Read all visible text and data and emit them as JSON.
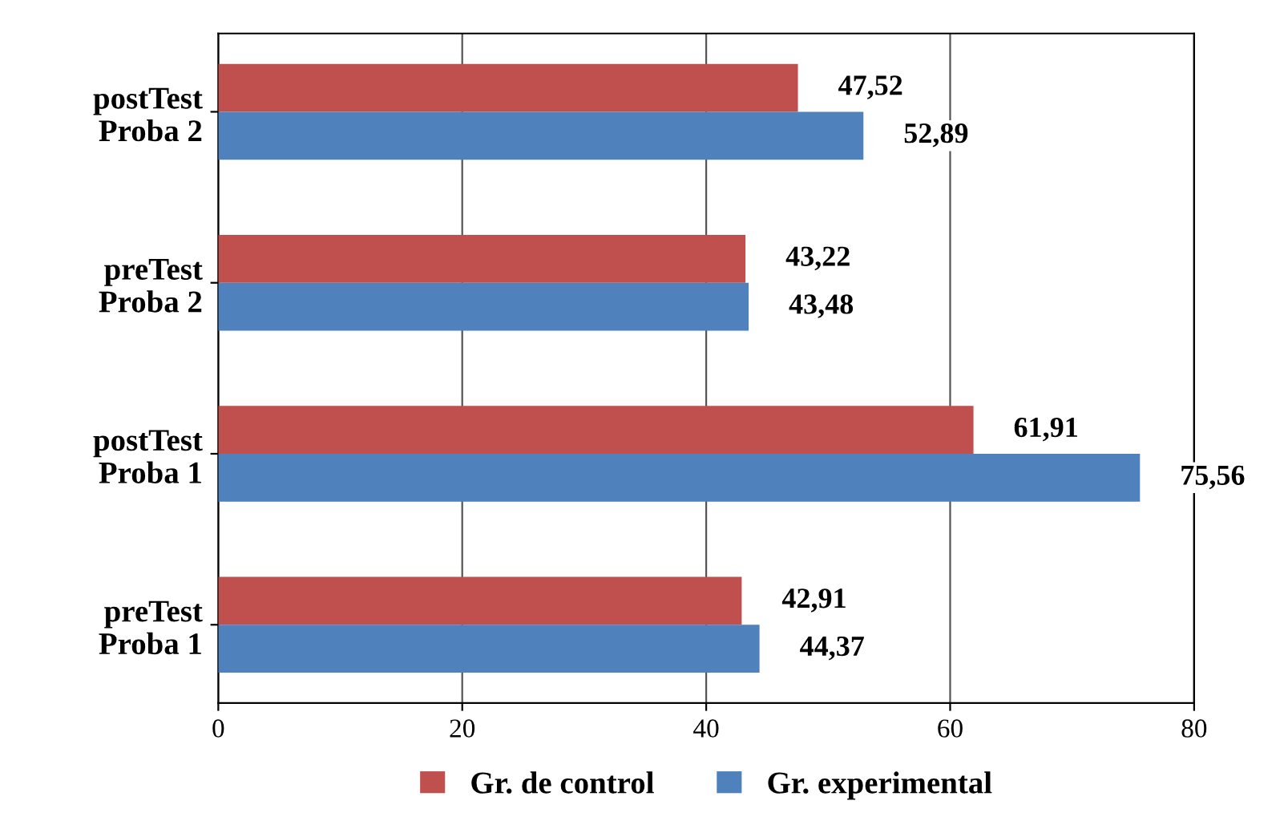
{
  "chart_data": {
    "type": "bar",
    "orientation": "horizontal",
    "categories": [
      "postTest\nProba 2",
      "preTest\nProba 2",
      "postTest\nProba 1",
      "preTest\nProba 1"
    ],
    "series": [
      {
        "name": "Gr. de control",
        "color": "#c0504d",
        "values": [
          47.52,
          43.22,
          61.91,
          42.91
        ],
        "value_labels": [
          "47,52",
          "43,22",
          "61,91",
          "42,91"
        ]
      },
      {
        "name": "Gr. experimental",
        "color": "#4f81bd",
        "values": [
          52.89,
          43.48,
          75.56,
          44.37
        ],
        "value_labels": [
          "52,89",
          "43,48",
          "75,56",
          "44,37"
        ]
      }
    ],
    "xlim": [
      0,
      80
    ],
    "xticks": [
      0,
      20,
      40,
      60,
      80
    ],
    "grid": "x",
    "legend": "bottom"
  }
}
